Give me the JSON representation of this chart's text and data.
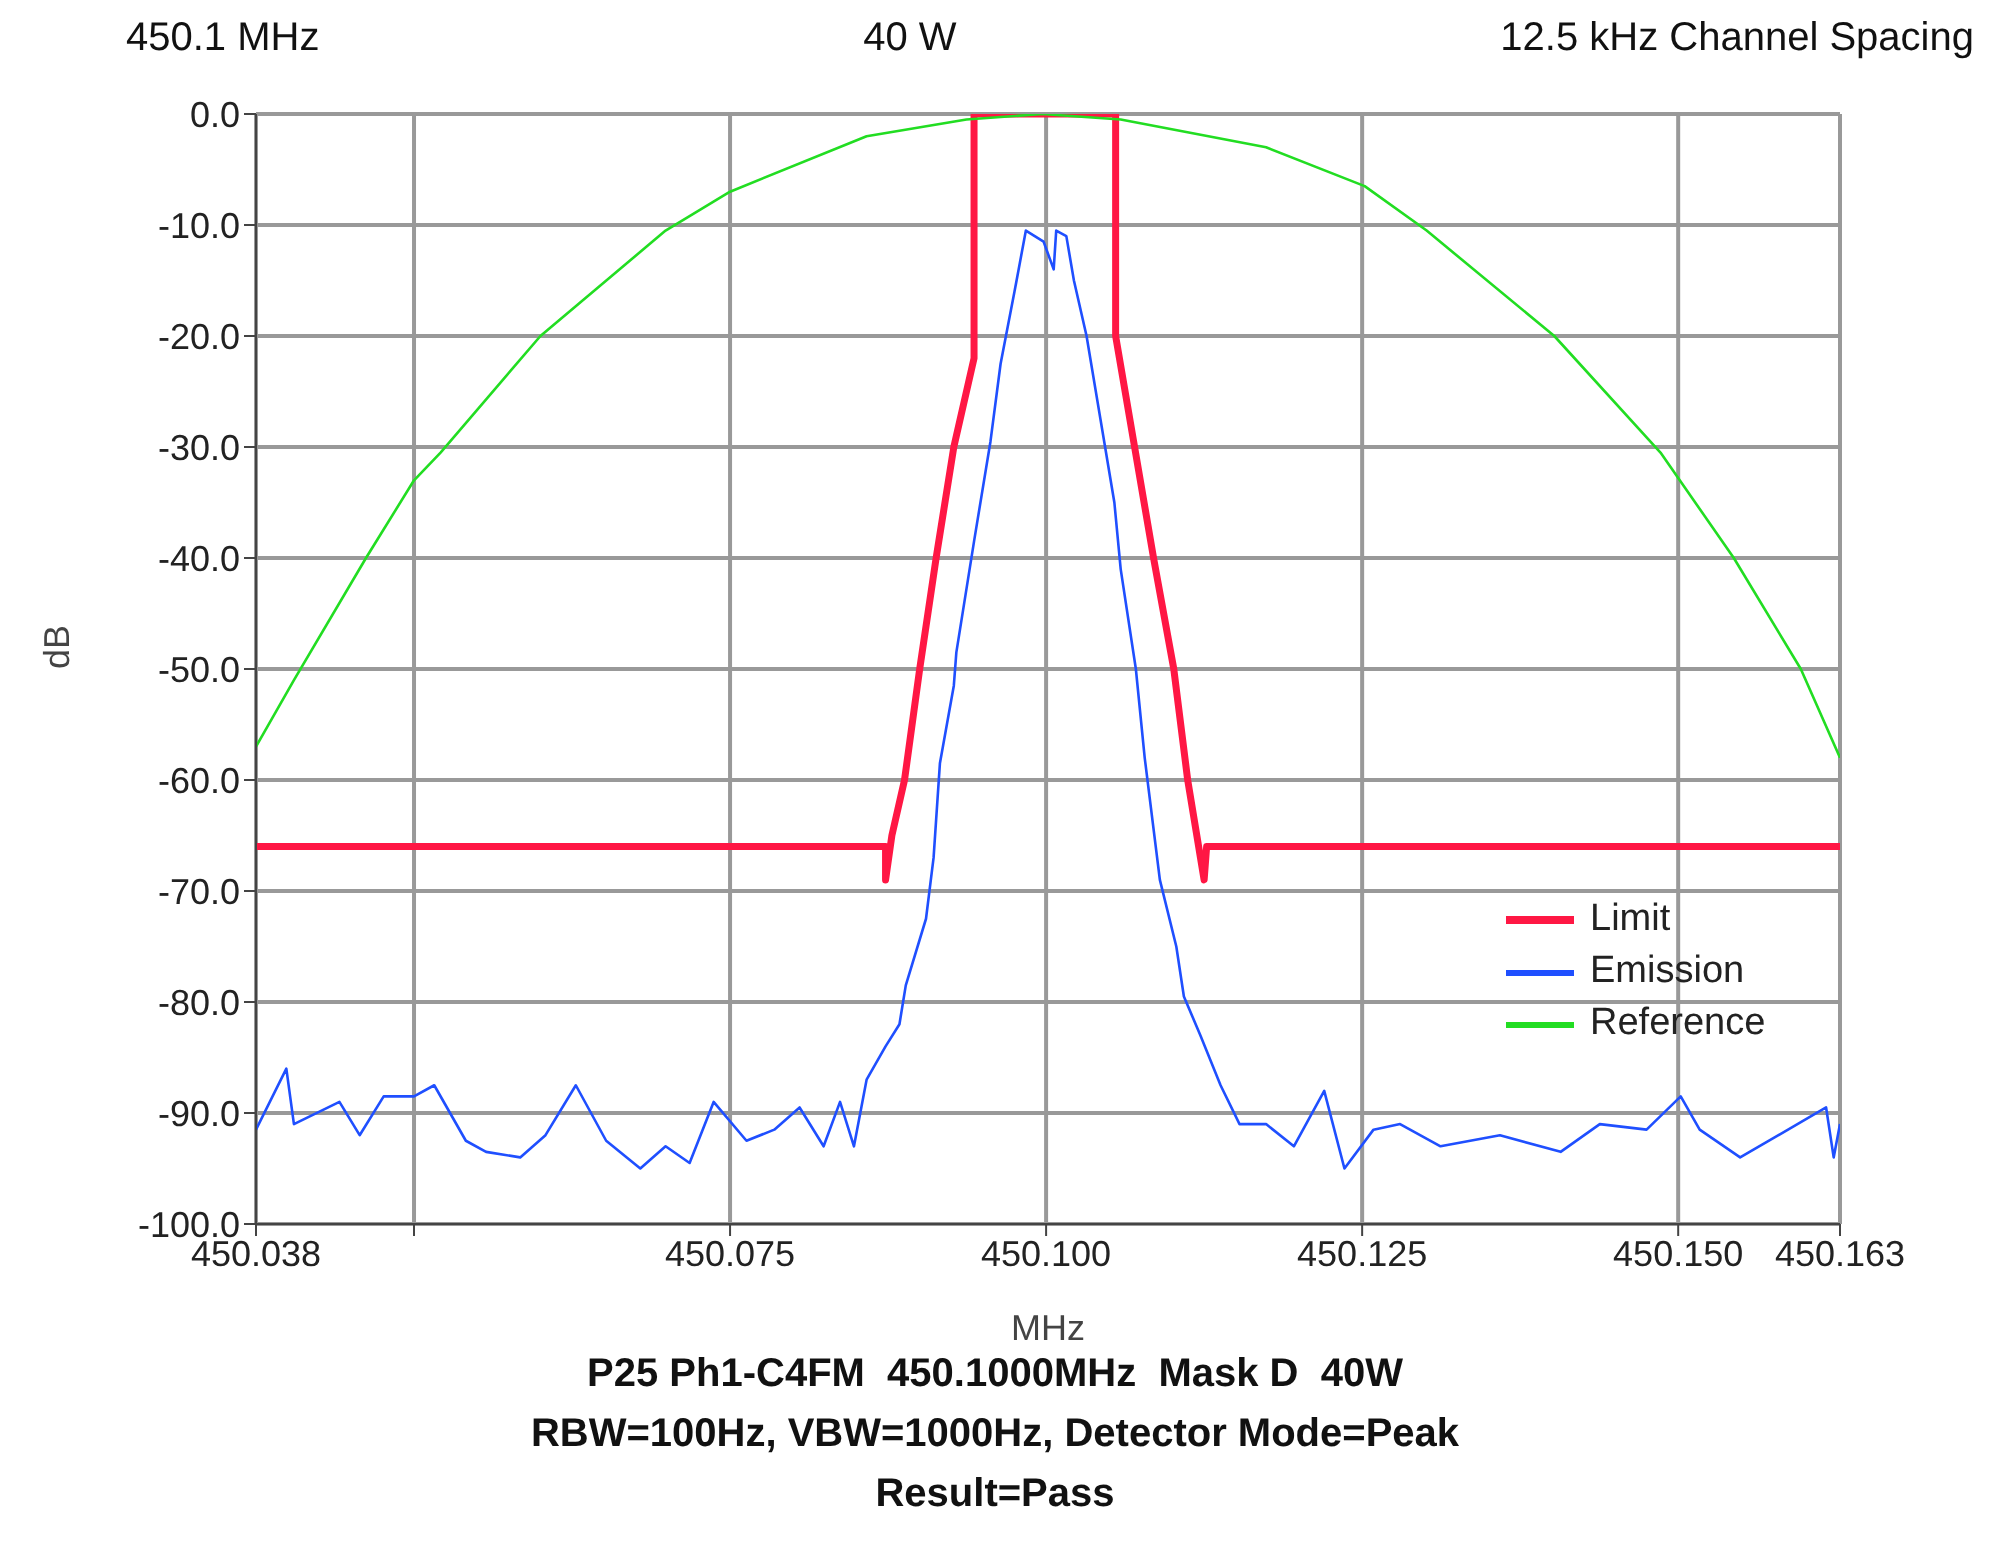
{
  "chart_data": {
    "type": "line",
    "title": "P25 Ph1-C4FM  450.1000MHz  Mask D  40W",
    "subtitle": "RBW=100Hz, VBW=1000Hz, Detector Mode=Peak",
    "annotations": [
      "450.1 MHz",
      "40 W",
      "12.5 kHz Channel Spacing",
      "Result=Pass"
    ],
    "xlabel": "MHz",
    "ylabel": "dB",
    "xlim": [
      450.0375,
      450.1628
    ],
    "ylim": [
      -100,
      0
    ],
    "xticks": [
      {
        "value": 450.0375,
        "label": "450.038"
      },
      {
        "value": 450.05,
        "label": null
      },
      {
        "value": 450.075,
        "label": "450.075"
      },
      {
        "value": 450.1,
        "label": "450.100"
      },
      {
        "value": 450.125,
        "label": "450.125"
      },
      {
        "value": 450.15,
        "label": "450.150"
      },
      {
        "value": 450.1628,
        "label": "450.163"
      }
    ],
    "yticks": [
      {
        "value": 0,
        "label": "0.0"
      },
      {
        "value": -10,
        "label": "-10.0"
      },
      {
        "value": -20,
        "label": "-20.0"
      },
      {
        "value": -30,
        "label": "-30.0"
      },
      {
        "value": -40,
        "label": "-40.0"
      },
      {
        "value": -50,
        "label": "-50.0"
      },
      {
        "value": -60,
        "label": "-60.0"
      },
      {
        "value": -70,
        "label": "-70.0"
      },
      {
        "value": -80,
        "label": "-80.0"
      },
      {
        "value": -90,
        "label": "-90.0"
      },
      {
        "value": -100,
        "label": "-100.0"
      }
    ],
    "grid": true,
    "legend": "bottom right",
    "marker": "none",
    "line_style": "solid",
    "series": [
      {
        "name": "Limit",
        "color": "#ff1744",
        "x": [
          450.0375,
          450.0873,
          450.0873,
          450.0878,
          450.0888,
          450.09,
          450.0913,
          450.0927,
          450.0943,
          450.0943,
          450.1055,
          450.1055,
          450.107,
          450.1085,
          450.1101,
          450.1112,
          450.1125,
          450.1127,
          450.1628
        ],
        "values": [
          -66,
          -66,
          -69,
          -65,
          -60,
          -50,
          -40,
          -30,
          -22,
          0,
          0,
          -20,
          -30,
          -40,
          -50,
          -60,
          -69,
          -66,
          -66
        ]
      },
      {
        "name": "Emission",
        "color": "#1f4fff",
        "x": [
          450.0375,
          450.0399,
          450.0405,
          450.0441,
          450.0457,
          450.0476,
          450.05,
          450.0516,
          450.0541,
          450.0557,
          450.0584,
          450.0604,
          450.0628,
          450.0652,
          450.0679,
          450.0699,
          450.0718,
          450.0737,
          450.0763,
          450.0785,
          450.0805,
          450.0824,
          450.0837,
          450.0848,
          450.0858,
          450.0873,
          450.0884,
          450.0889,
          450.0905,
          450.0911,
          450.0916,
          450.0927,
          450.0929,
          450.0943,
          450.0956,
          450.0964,
          450.0975,
          450.0984,
          450.0998,
          450.1006,
          450.1008,
          450.1016,
          450.1022,
          450.1032,
          450.1043,
          450.1054,
          450.1059,
          450.1071,
          450.1078,
          450.109,
          450.1103,
          450.1109,
          450.1122,
          450.1138,
          450.1153,
          450.1174,
          450.1196,
          450.122,
          450.1236,
          450.1259,
          450.128,
          450.1312,
          450.1359,
          450.1407,
          450.1438,
          450.1475,
          450.1502,
          450.1517,
          450.1549,
          450.1617,
          450.1623,
          450.1628
        ],
        "values": [
          -91.5,
          -86,
          -91,
          -89,
          -92,
          -88.5,
          -88.5,
          -87.5,
          -92.5,
          -93.5,
          -94,
          -92,
          -87.5,
          -92.5,
          -95,
          -93,
          -94.5,
          -89,
          -92.5,
          -91.5,
          -89.5,
          -93,
          -89,
          -93,
          -87,
          -84,
          -82,
          -78.5,
          -72.5,
          -67,
          -58.5,
          -51.5,
          -48.5,
          -38.5,
          -29.5,
          -22.5,
          -16,
          -10.5,
          -11.5,
          -14,
          -10.5,
          -11,
          -15,
          -20,
          -27.5,
          -35,
          -41,
          -50,
          -58,
          -69,
          -75,
          -79.5,
          -83,
          -87.5,
          -91,
          -91,
          -93,
          -88,
          -95,
          -91.5,
          -91,
          -93,
          -92,
          -93.5,
          -91,
          -91.5,
          -88.5,
          -91.5,
          -94,
          -89.5,
          -94,
          -91
        ]
      },
      {
        "name": "Reference",
        "color": "#22dd22",
        "x": [
          450.0375,
          450.0405,
          450.0462,
          450.05,
          450.0521,
          450.06,
          450.0699,
          450.075,
          450.0858,
          450.0937,
          450.0997,
          450.1059,
          450.1174,
          450.1252,
          450.1301,
          450.1402,
          450.1486,
          450.1544,
          450.1597,
          450.1628
        ],
        "values": [
          -57,
          -51,
          -40,
          -33,
          -30.5,
          -20,
          -10.5,
          -7,
          -2,
          -0.5,
          0,
          -0.5,
          -3,
          -6.5,
          -10.5,
          -20,
          -30.5,
          -40,
          -50,
          -58
        ]
      }
    ]
  }
}
